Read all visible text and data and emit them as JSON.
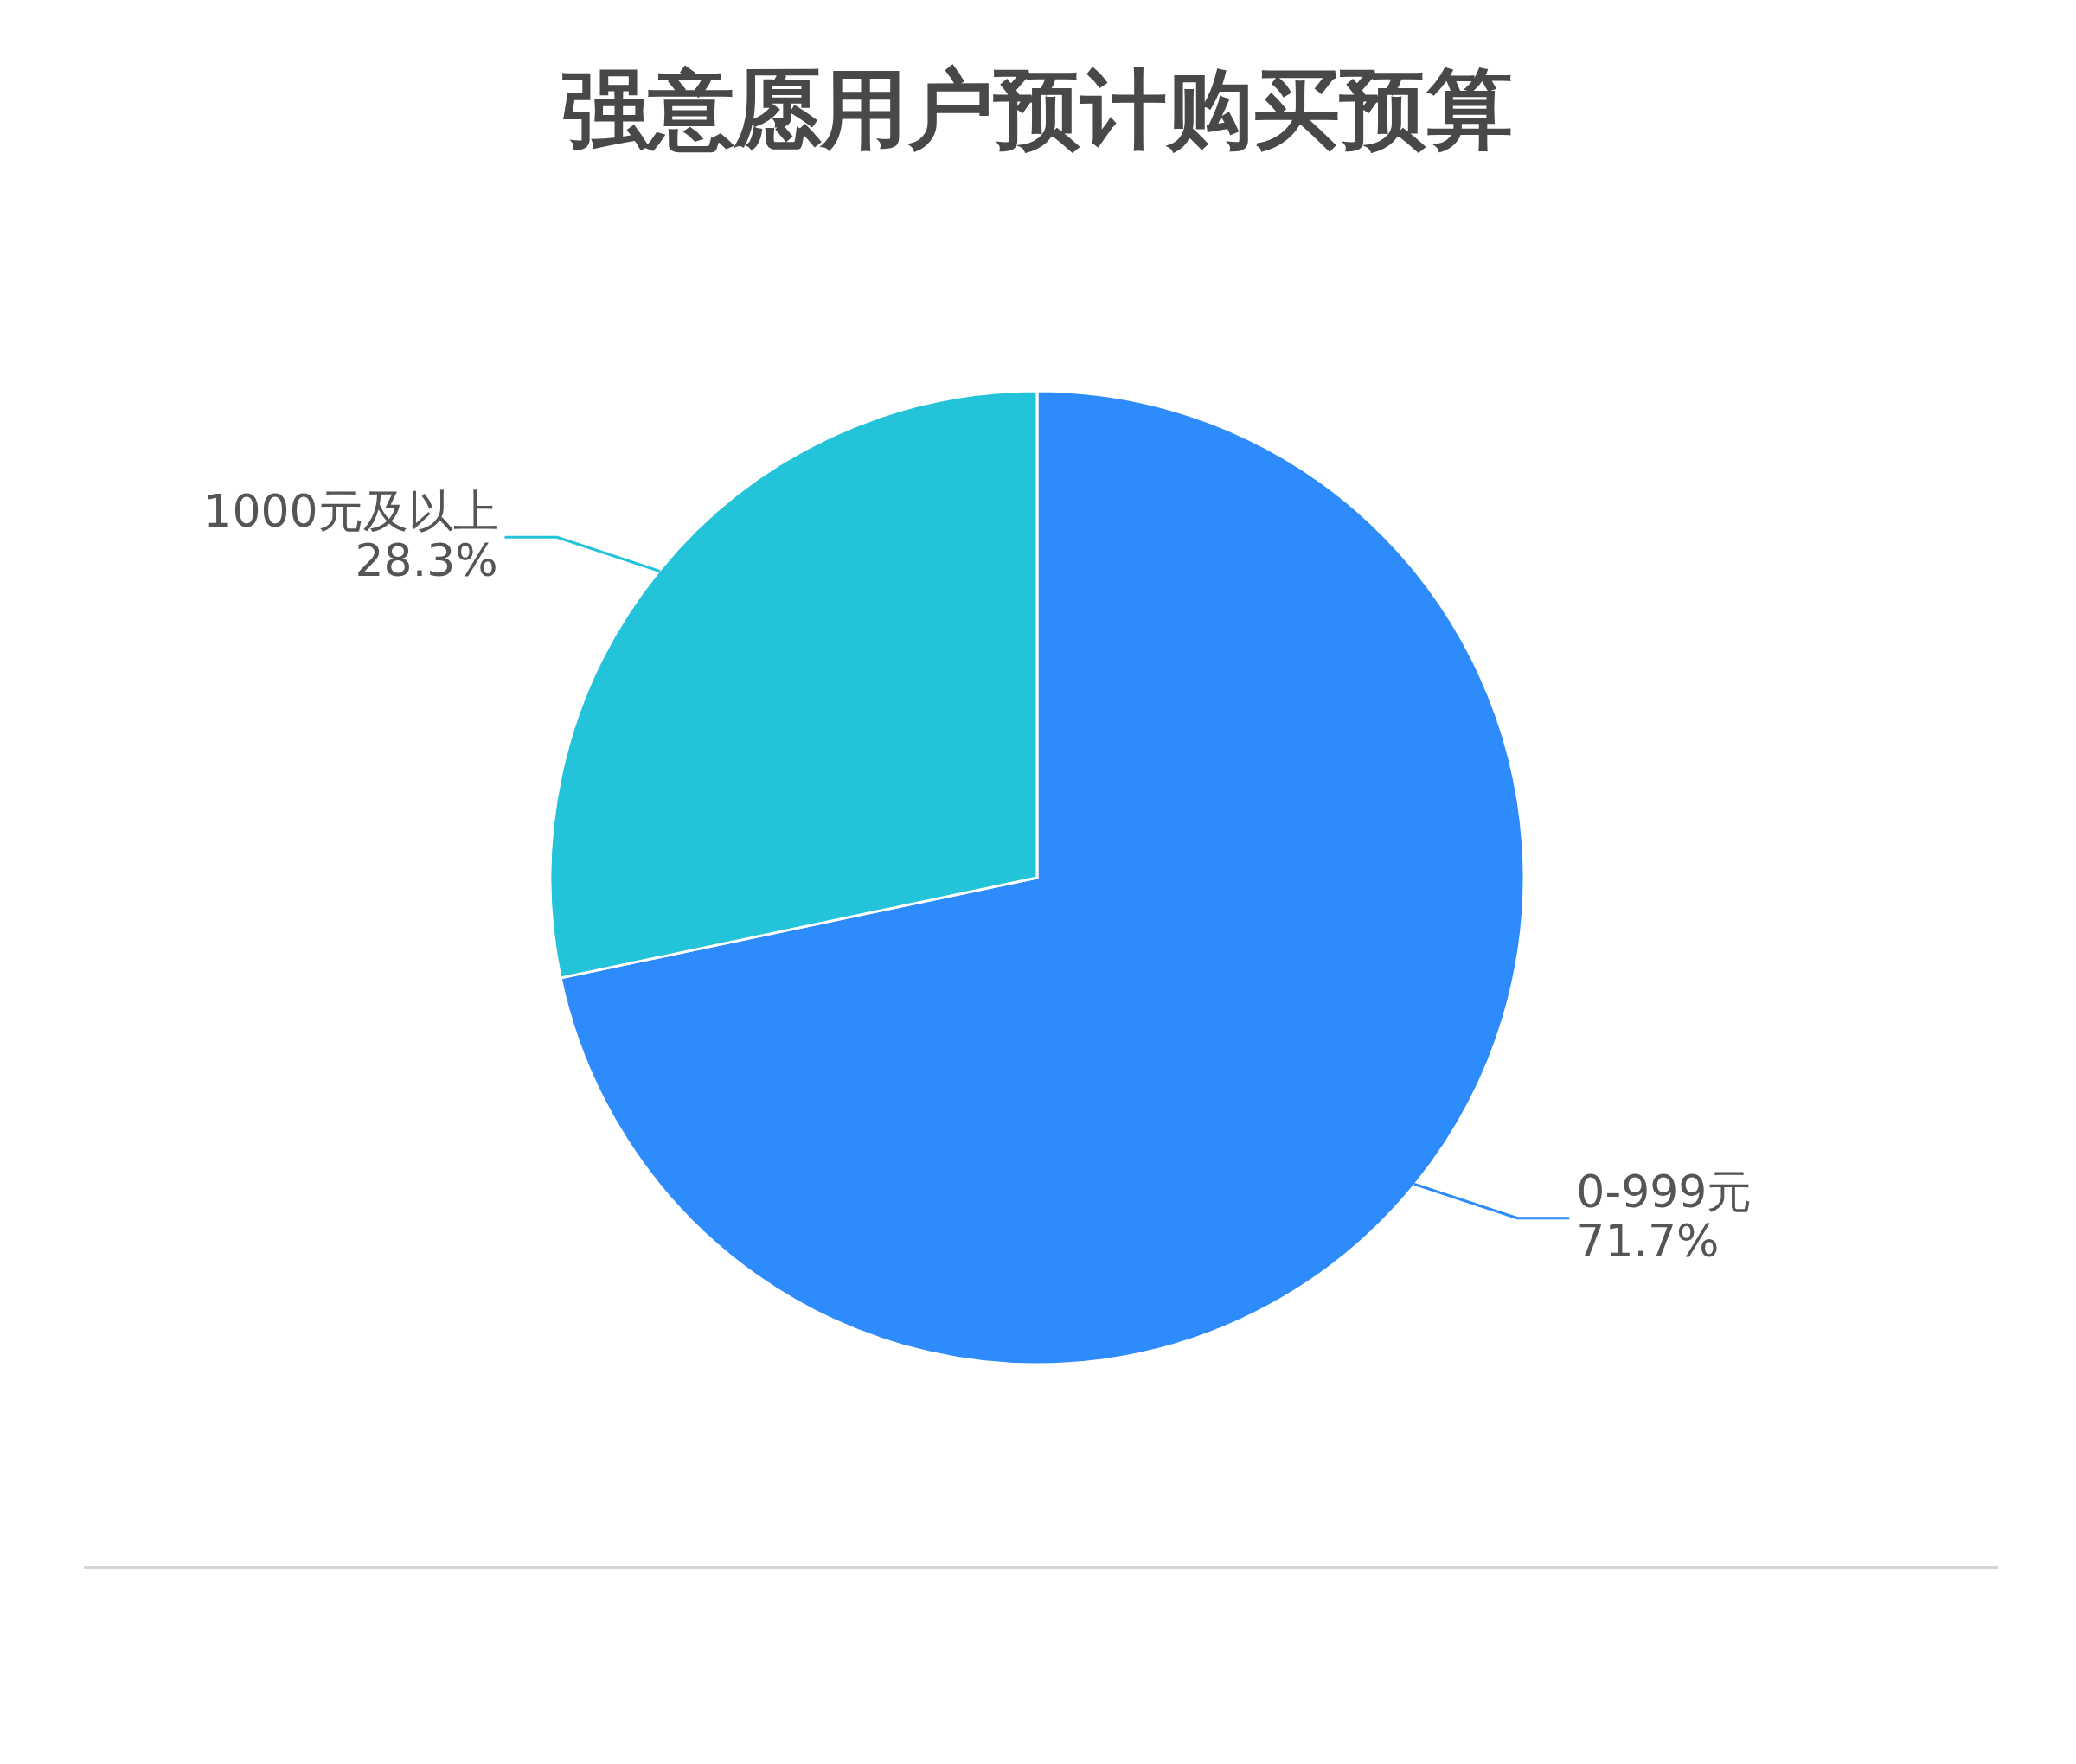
{
  "chart_data": {
    "type": "pie",
    "title": "强意愿用户预计购买预算",
    "categories": [
      "0-999元",
      "1000元及以上"
    ],
    "values": [
      71.7,
      28.3
    ],
    "colors": [
      "#2e8bfc",
      "#23c3da"
    ],
    "value_labels": [
      "71.7%",
      "28.3%"
    ],
    "legend": false
  }
}
